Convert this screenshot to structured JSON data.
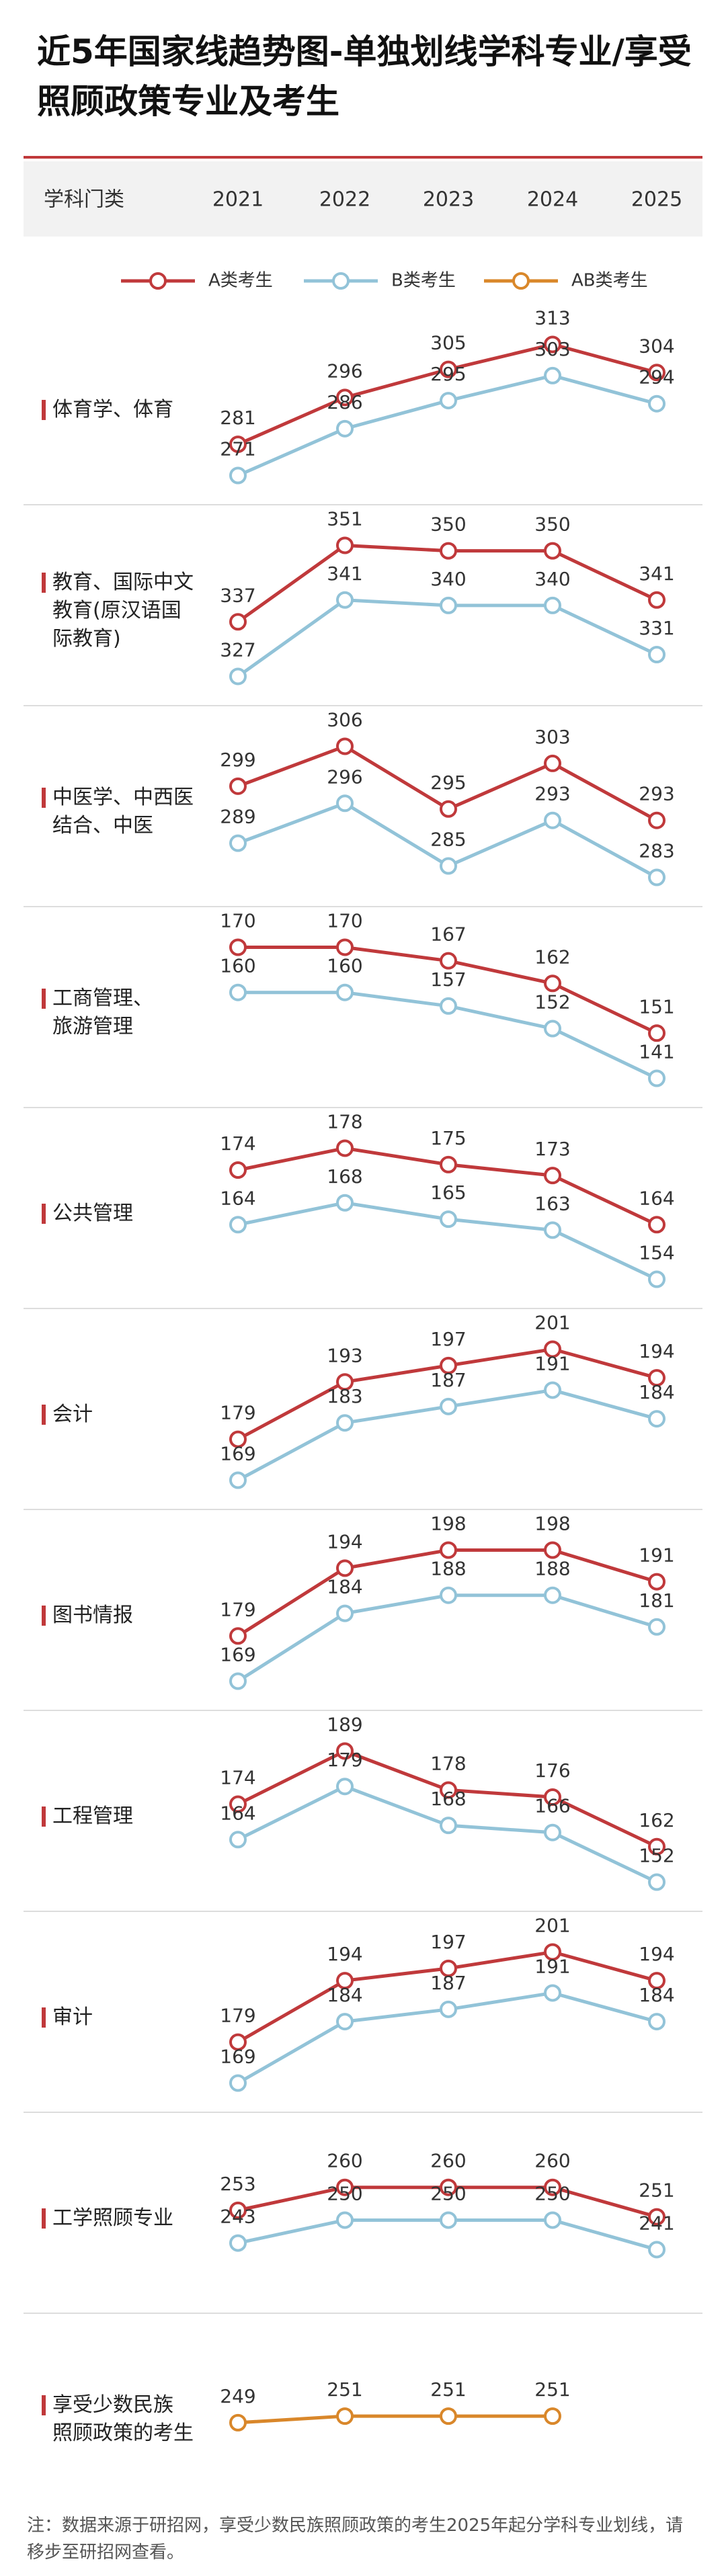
{
  "chart_data": {
    "type": "line",
    "title": "近5年国家线趋势图-单独划线学科专业/享受照顾政策专业及考生",
    "header_label": "学科门类",
    "categories": [
      "2021",
      "2022",
      "2023",
      "2024",
      "2025"
    ],
    "panel_labels": [
      "体育学、体育",
      "教育、国际中文\n教育(原汉语国\n际教育)",
      "中医学、中西医\n结合、中医",
      "工商管理、\n旅游管理",
      "公共管理",
      "会计",
      "图书情报",
      "工程管理",
      "审计",
      "工学照顾专业",
      "享受少数民族\n照顾政策的考生"
    ],
    "series": [
      {
        "name": "A类考生",
        "color": "#c0393b",
        "values": [
          [
            281,
            296,
            305,
            313,
            304
          ],
          [
            337,
            351,
            350,
            350,
            341
          ],
          [
            299,
            306,
            295,
            303,
            293
          ],
          [
            170,
            170,
            167,
            162,
            151
          ],
          [
            174,
            178,
            175,
            173,
            164
          ],
          [
            179,
            193,
            197,
            201,
            194
          ],
          [
            179,
            194,
            198,
            198,
            191
          ],
          [
            174,
            189,
            178,
            176,
            162
          ],
          [
            179,
            194,
            197,
            201,
            194
          ],
          [
            253,
            260,
            260,
            260,
            251
          ],
          [
            null,
            null,
            null,
            null,
            null
          ]
        ]
      },
      {
        "name": "B类考生",
        "color": "#92c3d8",
        "values": [
          [
            271,
            286,
            295,
            303,
            294
          ],
          [
            327,
            341,
            340,
            340,
            331
          ],
          [
            289,
            296,
            285,
            293,
            283
          ],
          [
            160,
            160,
            157,
            152,
            141
          ],
          [
            164,
            168,
            165,
            163,
            154
          ],
          [
            169,
            183,
            187,
            191,
            184
          ],
          [
            169,
            184,
            188,
            188,
            181
          ],
          [
            164,
            179,
            168,
            166,
            152
          ],
          [
            169,
            184,
            187,
            191,
            184
          ],
          [
            243,
            250,
            250,
            250,
            241
          ],
          [
            null,
            null,
            null,
            null,
            null
          ]
        ]
      },
      {
        "name": "AB类考生",
        "color": "#d9872a",
        "values": [
          [
            null,
            null,
            null,
            null,
            null
          ],
          [
            null,
            null,
            null,
            null,
            null
          ],
          [
            null,
            null,
            null,
            null,
            null
          ],
          [
            null,
            null,
            null,
            null,
            null
          ],
          [
            null,
            null,
            null,
            null,
            null
          ],
          [
            null,
            null,
            null,
            null,
            null
          ],
          [
            null,
            null,
            null,
            null,
            null
          ],
          [
            null,
            null,
            null,
            null,
            null
          ],
          [
            null,
            null,
            null,
            null,
            null
          ],
          [
            null,
            null,
            null,
            null,
            null
          ],
          [
            249,
            251,
            251,
            251,
            null
          ]
        ]
      }
    ],
    "note": "注：数据来源于研招网，享受少数民族照顾政策的考生2025年起分学科专业划线，请移步至研招网查看。"
  }
}
